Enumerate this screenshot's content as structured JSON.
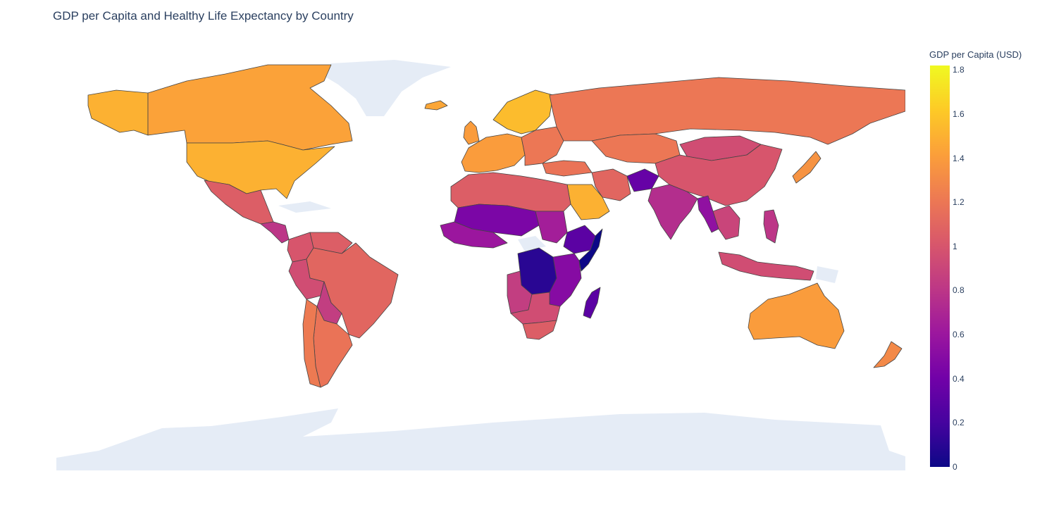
{
  "chart_data": {
    "type": "choropleth",
    "title": "GDP per Capita and Healthy Life Expectancy by Country",
    "colorbar": {
      "title": "GDP per Capita (USD)",
      "min": 0,
      "max": 1.82,
      "ticks": [
        "0",
        "0.2",
        "0.4",
        "0.6",
        "0.8",
        "1",
        "1.2",
        "1.4",
        "1.6",
        "1.8"
      ],
      "tick_values": [
        0,
        0.2,
        0.4,
        0.6,
        0.8,
        1,
        1.2,
        1.4,
        1.6,
        1.8
      ],
      "colorscale": [
        "#0d0887",
        "#46039f",
        "#7201a8",
        "#9c179e",
        "#bd3786",
        "#d8576b",
        "#ed7953",
        "#fb9f3a",
        "#fdca26",
        "#f0f921"
      ]
    },
    "regions": [
      {
        "name": "Canada",
        "value": 1.43
      },
      {
        "name": "Alaska",
        "value": 1.5
      },
      {
        "name": "United States",
        "value": 1.5
      },
      {
        "name": "Greenland",
        "value": null
      },
      {
        "name": "Mexico",
        "value": 1.05
      },
      {
        "name": "Central America",
        "value": 0.8
      },
      {
        "name": "Colombia",
        "value": 1.0
      },
      {
        "name": "Venezuela",
        "value": 1.05
      },
      {
        "name": "Brazil",
        "value": 1.1
      },
      {
        "name": "Peru",
        "value": 0.95
      },
      {
        "name": "Bolivia",
        "value": 0.85
      },
      {
        "name": "Argentina",
        "value": 1.18
      },
      {
        "name": "Chile",
        "value": 1.22
      },
      {
        "name": "Iceland",
        "value": 1.45
      },
      {
        "name": "United Kingdom",
        "value": 1.4
      },
      {
        "name": "Scandinavia",
        "value": 1.55
      },
      {
        "name": "Western Europe",
        "value": 1.4
      },
      {
        "name": "Eastern Europe",
        "value": 1.2
      },
      {
        "name": "Russia",
        "value": 1.2
      },
      {
        "name": "Kazakhstan",
        "value": 1.2
      },
      {
        "name": "Mongolia",
        "value": 0.95
      },
      {
        "name": "China",
        "value": 1.0
      },
      {
        "name": "Japan",
        "value": 1.35
      },
      {
        "name": "India",
        "value": 0.75
      },
      {
        "name": "Afghanistan",
        "value": 0.35
      },
      {
        "name": "Iran",
        "value": 1.1
      },
      {
        "name": "Saudi Arabia",
        "value": 1.5
      },
      {
        "name": "Turkey",
        "value": 1.18
      },
      {
        "name": "Southeast Asia",
        "value": 0.9
      },
      {
        "name": "Myanmar",
        "value": 0.55
      },
      {
        "name": "Indonesia",
        "value": 0.95
      },
      {
        "name": "Philippines",
        "value": 0.8
      },
      {
        "name": "Australia",
        "value": 1.4
      },
      {
        "name": "New Zealand",
        "value": 1.3
      },
      {
        "name": "North Africa",
        "value": 1.05
      },
      {
        "name": "Sahel",
        "value": 0.45
      },
      {
        "name": "West Africa",
        "value": 0.6
      },
      {
        "name": "Sudan",
        "value": 0.65
      },
      {
        "name": "Ethiopia",
        "value": 0.3
      },
      {
        "name": "Somalia",
        "value": 0.0
      },
      {
        "name": "Congo DR",
        "value": 0.1
      },
      {
        "name": "East Africa",
        "value": 0.5
      },
      {
        "name": "Angola",
        "value": 0.85
      },
      {
        "name": "Southern Africa",
        "value": 0.95
      },
      {
        "name": "South Africa",
        "value": 1.05
      },
      {
        "name": "Madagascar",
        "value": 0.3
      },
      {
        "name": "Antarctica",
        "value": null
      }
    ]
  }
}
